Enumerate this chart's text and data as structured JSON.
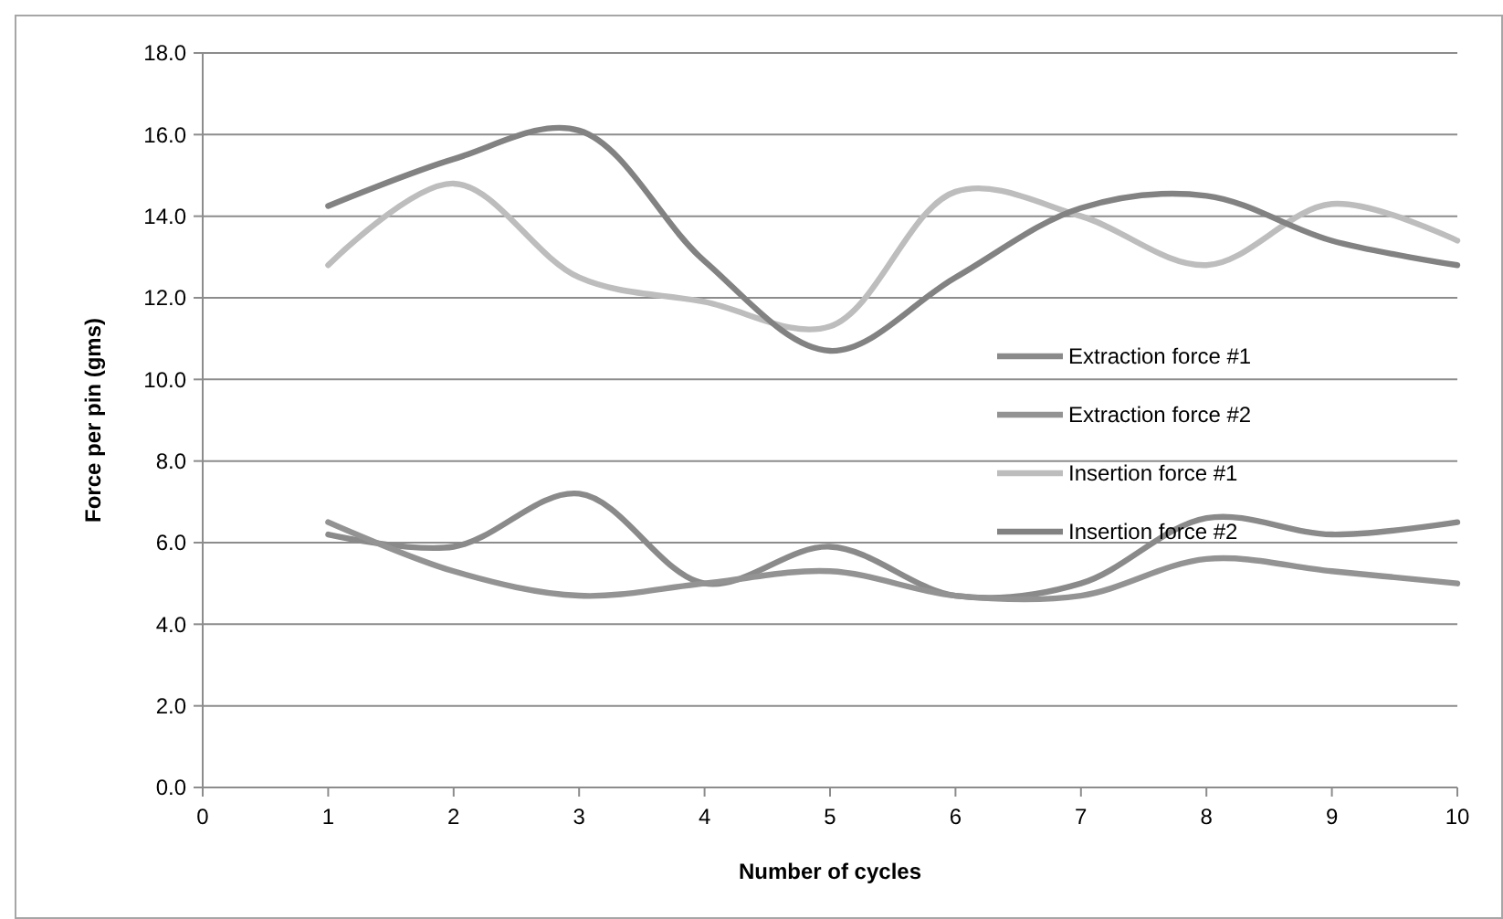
{
  "chart_data": {
    "type": "line",
    "xlabel": "Number of cycles",
    "ylabel": "Force per pin (gms)",
    "x": [
      1,
      2,
      3,
      4,
      5,
      6,
      7,
      8,
      9,
      10
    ],
    "xlim": [
      0,
      10
    ],
    "xticks": [
      0,
      1,
      2,
      3,
      4,
      5,
      6,
      7,
      8,
      9,
      10
    ],
    "ylim": [
      0,
      18
    ],
    "yticks": [
      {
        "value": 0,
        "label": "0.0"
      },
      {
        "value": 2,
        "label": "2.0"
      },
      {
        "value": 4,
        "label": "4.0"
      },
      {
        "value": 6,
        "label": "6.0"
      },
      {
        "value": 8,
        "label": "8.0"
      },
      {
        "value": 10,
        "label": "10.0"
      },
      {
        "value": 12,
        "label": "12.0"
      },
      {
        "value": 14,
        "label": "14.0"
      },
      {
        "value": 16,
        "label": "16.0"
      },
      {
        "value": 18,
        "label": "18.0"
      }
    ],
    "grid": "y",
    "legend": "right",
    "marker": "none",
    "line_style": "solid",
    "series": [
      {
        "name": "Extraction force #1",
        "color": "#8a8a8a",
        "values": [
          6.2,
          5.9,
          7.2,
          5.0,
          5.9,
          4.7,
          5.0,
          6.6,
          6.2,
          6.5
        ]
      },
      {
        "name": "Extraction force #2",
        "color": "#939393",
        "values": [
          6.5,
          5.3,
          4.7,
          5.0,
          5.3,
          4.7,
          4.7,
          5.6,
          5.3,
          5.0
        ]
      },
      {
        "name": "Insertion force #1",
        "color": "#bdbdbd",
        "values": [
          12.8,
          14.8,
          12.5,
          11.9,
          11.3,
          14.6,
          14.0,
          12.8,
          14.3,
          13.4
        ]
      },
      {
        "name": "Insertion force #2",
        "color": "#828282",
        "values": [
          14.25,
          15.4,
          16.1,
          12.9,
          10.7,
          12.5,
          14.2,
          14.5,
          13.4,
          12.8
        ]
      }
    ]
  }
}
